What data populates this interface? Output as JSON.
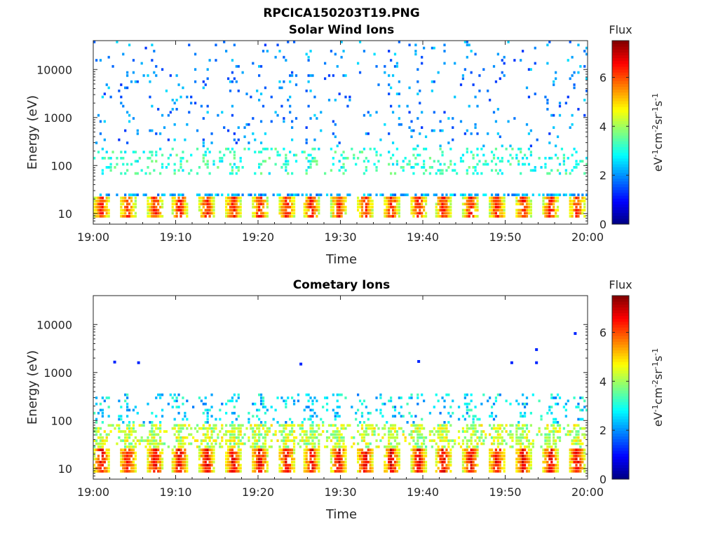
{
  "figure_title": "RPCICA150203T19.PNG",
  "chart_data": [
    {
      "type": "heatmap",
      "title": "Solar Wind Ions",
      "xlabel": "Time",
      "ylabel": "Energy (eV)",
      "x_ticks": [
        "19:00",
        "19:10",
        "19:20",
        "19:30",
        "19:40",
        "19:50",
        "20:00"
      ],
      "x_range": [
        "19:00",
        "20:00"
      ],
      "y_scale": "log",
      "y_ticks": [
        "10",
        "100",
        "1000",
        "10000"
      ],
      "y_range": [
        6,
        40000
      ],
      "grid": false,
      "colorbar": {
        "label_top": "Flux",
        "unit_label": "eV-1cm-2sr-1s-1",
        "ticks": [
          "0",
          "2",
          "4",
          "6"
        ],
        "range": [
          0,
          7.5
        ],
        "colormap": "jet"
      },
      "pulse_times_min": [
        1.0,
        4.2,
        7.5,
        10.5,
        13.8,
        17.0,
        20.2,
        23.5,
        26.5,
        29.8,
        33.0,
        36.2,
        39.5,
        42.5,
        45.8,
        49.0,
        52.2,
        55.5,
        58.7
      ],
      "bands": [
        {
          "energy_range_eV": [
            8,
            22
          ],
          "flux_level": 6.5,
          "description_in_image": false
        },
        {
          "energy_range_eV": [
            22,
            28
          ],
          "flux_level": 2.2,
          "description_in_image": false
        },
        {
          "energy_range_eV": [
            60,
            250
          ],
          "flux_level": 2.5,
          "description_in_image": false
        },
        {
          "energy_range_eV": [
            250,
            40000
          ],
          "flux_level": 1.3,
          "description_in_image": false
        }
      ]
    },
    {
      "type": "heatmap",
      "title": "Cometary Ions",
      "xlabel": "Time",
      "ylabel": "Energy (eV)",
      "x_ticks": [
        "19:00",
        "19:10",
        "19:20",
        "19:30",
        "19:40",
        "19:50",
        "20:00"
      ],
      "x_range": [
        "19:00",
        "20:00"
      ],
      "y_scale": "log",
      "y_ticks": [
        "10",
        "100",
        "1000",
        "10000"
      ],
      "y_range": [
        6,
        40000
      ],
      "grid": false,
      "colorbar": {
        "label_top": "Flux",
        "unit_label": "eV-1cm-2sr-1s-1",
        "ticks": [
          "0",
          "2",
          "4",
          "6"
        ],
        "range": [
          0,
          7.5
        ],
        "colormap": "jet"
      },
      "pulse_times_min": [
        1.0,
        4.2,
        7.5,
        10.5,
        13.8,
        17.0,
        20.2,
        23.5,
        26.5,
        29.8,
        33.0,
        36.2,
        39.5,
        42.5,
        45.8,
        49.0,
        52.2,
        55.5,
        58.7
      ],
      "bands": [
        {
          "energy_range_eV": [
            8,
            25
          ],
          "flux_level": 6.8,
          "description_in_image": false
        },
        {
          "energy_range_eV": [
            25,
            90
          ],
          "flux_level": 4.2,
          "description_in_image": false
        },
        {
          "energy_range_eV": [
            90,
            350
          ],
          "flux_level": 2.6,
          "description_in_image": false
        }
      ],
      "isolated_points": [
        {
          "time_min": 2.6,
          "energy_eV": 1650,
          "flux": 1.2
        },
        {
          "time_min": 5.5,
          "energy_eV": 1600,
          "flux": 1.2
        },
        {
          "time_min": 25.2,
          "energy_eV": 1500,
          "flux": 1.2
        },
        {
          "time_min": 39.5,
          "energy_eV": 1700,
          "flux": 1.2
        },
        {
          "time_min": 50.8,
          "energy_eV": 1600,
          "flux": 1.2
        },
        {
          "time_min": 53.8,
          "energy_eV": 1600,
          "flux": 1.2
        },
        {
          "time_min": 53.8,
          "energy_eV": 3000,
          "flux": 1.2
        },
        {
          "time_min": 58.5,
          "energy_eV": 6500,
          "flux": 1.2
        }
      ]
    }
  ]
}
